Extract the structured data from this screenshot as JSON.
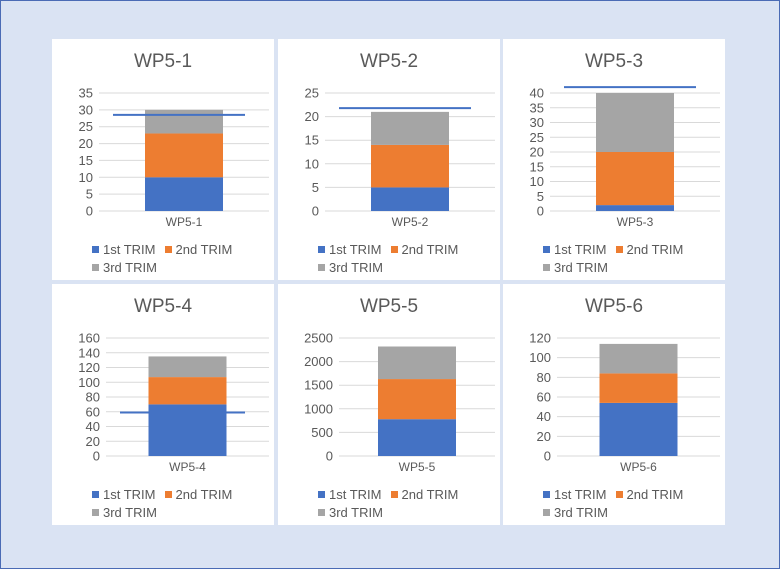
{
  "colors": {
    "series1": "#4472c4",
    "series2": "#ed7d31",
    "series3": "#a5a5a5",
    "target_line": "#4472c4",
    "background": "#dae3f3"
  },
  "legend": {
    "labels": [
      "1st TRIM",
      "2nd TRIM",
      "3rd TRIM"
    ]
  },
  "chart_data": [
    {
      "type": "bar",
      "stacked": true,
      "title": "WP5-1",
      "categories": [
        "WP5-1"
      ],
      "series": [
        {
          "name": "1st TRIM",
          "values": [
            10
          ]
        },
        {
          "name": "2nd TRIM",
          "values": [
            13
          ]
        },
        {
          "name": "3rd TRIM",
          "values": [
            7
          ]
        }
      ],
      "target_line": 28.5,
      "ylim": [
        0,
        35
      ],
      "yticks": [
        0,
        5,
        10,
        15,
        20,
        25,
        30,
        35
      ],
      "grid": true,
      "legend_position": "bottom"
    },
    {
      "type": "bar",
      "stacked": true,
      "title": "WP5-2",
      "categories": [
        "WP5-2"
      ],
      "series": [
        {
          "name": "1st TRIM",
          "values": [
            5
          ]
        },
        {
          "name": "2nd TRIM",
          "values": [
            9
          ]
        },
        {
          "name": "3rd TRIM",
          "values": [
            7
          ]
        }
      ],
      "target_line": 21.8,
      "ylim": [
        0,
        25
      ],
      "yticks": [
        0,
        5,
        10,
        15,
        20,
        25
      ],
      "grid": true,
      "legend_position": "bottom"
    },
    {
      "type": "bar",
      "stacked": true,
      "title": "WP5-3",
      "categories": [
        "WP5-3"
      ],
      "series": [
        {
          "name": "1st TRIM",
          "values": [
            2
          ]
        },
        {
          "name": "2nd TRIM",
          "values": [
            18
          ]
        },
        {
          "name": "3rd TRIM",
          "values": [
            20
          ]
        }
      ],
      "target_line": 42,
      "ylim": [
        0,
        40
      ],
      "yticks": [
        0,
        5,
        10,
        15,
        20,
        25,
        30,
        35,
        40
      ],
      "grid": true,
      "legend_position": "bottom"
    },
    {
      "type": "bar",
      "stacked": true,
      "title": "WP5-4",
      "categories": [
        "WP5-4"
      ],
      "series": [
        {
          "name": "1st TRIM",
          "values": [
            70
          ]
        },
        {
          "name": "2nd TRIM",
          "values": [
            37
          ]
        },
        {
          "name": "3rd TRIM",
          "values": [
            28
          ]
        }
      ],
      "target_line": 59,
      "ylim": [
        0,
        160
      ],
      "yticks": [
        0,
        20,
        40,
        60,
        80,
        100,
        120,
        140,
        160
      ],
      "grid": true,
      "legend_position": "bottom"
    },
    {
      "type": "bar",
      "stacked": true,
      "title": "WP5-5",
      "categories": [
        "WP5-5"
      ],
      "series": [
        {
          "name": "1st TRIM",
          "values": [
            780
          ]
        },
        {
          "name": "2nd TRIM",
          "values": [
            850
          ]
        },
        {
          "name": "3rd TRIM",
          "values": [
            690
          ]
        }
      ],
      "target_line": null,
      "ylim": [
        0,
        2500
      ],
      "yticks": [
        0,
        500,
        1000,
        1500,
        2000,
        2500
      ],
      "grid": true,
      "legend_position": "bottom"
    },
    {
      "type": "bar",
      "stacked": true,
      "title": "WP5-6",
      "categories": [
        "WP5-6"
      ],
      "series": [
        {
          "name": "1st TRIM",
          "values": [
            54
          ]
        },
        {
          "name": "2nd TRIM",
          "values": [
            30
          ]
        },
        {
          "name": "3rd TRIM",
          "values": [
            30
          ]
        }
      ],
      "target_line": null,
      "ylim": [
        0,
        120
      ],
      "yticks": [
        0,
        20,
        40,
        60,
        80,
        100,
        120
      ],
      "grid": true,
      "legend_position": "bottom"
    }
  ]
}
